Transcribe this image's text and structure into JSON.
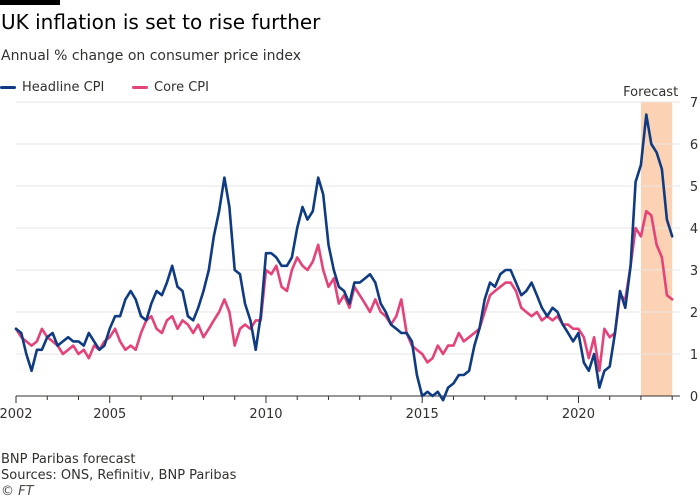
{
  "header": {
    "title": "UK inflation is set to rise further",
    "subtitle": "Annual % change on consumer price index"
  },
  "legend": {
    "headline_label": "Headline CPI",
    "core_label": "Core CPI"
  },
  "footer": {
    "note": "BNP Paribas forecast",
    "sources": "Sources: ONS, Refinitiv, BNP Paribas",
    "copyright": "© FT"
  },
  "colors": {
    "headline": "#0f3b82",
    "core": "#e5427a",
    "forecast_band": "#fbd2b3",
    "grid": "#e8e6e3",
    "axis": "#33302e"
  },
  "chart_data": {
    "type": "line",
    "title": "UK inflation is set to rise further",
    "subtitle": "Annual % change on consumer price index",
    "xlabel": "",
    "ylabel": "",
    "xlim": [
      2002.0,
      2023.25
    ],
    "ylim": [
      0,
      7
    ],
    "x_ticks": [
      2002,
      2005,
      2010,
      2015,
      2020
    ],
    "y_ticks": [
      0,
      1,
      2,
      3,
      4,
      5,
      6,
      7
    ],
    "grid": true,
    "legend_position": "top-left",
    "annotation": {
      "label": "Forecast",
      "x_start": 2022.0,
      "x_end": 2023.0
    },
    "series": [
      {
        "name": "Headline CPI",
        "color": "#0f3b82",
        "points": [
          [
            2002.0,
            1.6
          ],
          [
            2002.17,
            1.5
          ],
          [
            2002.33,
            1.0
          ],
          [
            2002.5,
            0.6
          ],
          [
            2002.67,
            1.1
          ],
          [
            2002.83,
            1.1
          ],
          [
            2003.0,
            1.4
          ],
          [
            2003.17,
            1.5
          ],
          [
            2003.33,
            1.2
          ],
          [
            2003.5,
            1.3
          ],
          [
            2003.67,
            1.4
          ],
          [
            2003.83,
            1.3
          ],
          [
            2004.0,
            1.3
          ],
          [
            2004.17,
            1.2
          ],
          [
            2004.33,
            1.5
          ],
          [
            2004.5,
            1.3
          ],
          [
            2004.67,
            1.1
          ],
          [
            2004.83,
            1.2
          ],
          [
            2005.0,
            1.6
          ],
          [
            2005.17,
            1.9
          ],
          [
            2005.33,
            1.9
          ],
          [
            2005.5,
            2.3
          ],
          [
            2005.67,
            2.5
          ],
          [
            2005.83,
            2.3
          ],
          [
            2006.0,
            1.9
          ],
          [
            2006.17,
            1.8
          ],
          [
            2006.33,
            2.2
          ],
          [
            2006.5,
            2.5
          ],
          [
            2006.67,
            2.4
          ],
          [
            2006.83,
            2.7
          ],
          [
            2007.0,
            3.1
          ],
          [
            2007.17,
            2.6
          ],
          [
            2007.33,
            2.5
          ],
          [
            2007.5,
            1.9
          ],
          [
            2007.67,
            1.8
          ],
          [
            2007.83,
            2.1
          ],
          [
            2008.0,
            2.5
          ],
          [
            2008.17,
            3.0
          ],
          [
            2008.33,
            3.8
          ],
          [
            2008.5,
            4.4
          ],
          [
            2008.67,
            5.2
          ],
          [
            2008.83,
            4.5
          ],
          [
            2009.0,
            3.0
          ],
          [
            2009.17,
            2.9
          ],
          [
            2009.33,
            2.2
          ],
          [
            2009.5,
            1.8
          ],
          [
            2009.67,
            1.1
          ],
          [
            2009.83,
            1.9
          ],
          [
            2010.0,
            3.4
          ],
          [
            2010.17,
            3.4
          ],
          [
            2010.33,
            3.3
          ],
          [
            2010.5,
            3.1
          ],
          [
            2010.67,
            3.1
          ],
          [
            2010.83,
            3.3
          ],
          [
            2011.0,
            4.0
          ],
          [
            2011.17,
            4.5
          ],
          [
            2011.33,
            4.2
          ],
          [
            2011.5,
            4.4
          ],
          [
            2011.67,
            5.2
          ],
          [
            2011.83,
            4.8
          ],
          [
            2012.0,
            3.6
          ],
          [
            2012.17,
            3.0
          ],
          [
            2012.33,
            2.6
          ],
          [
            2012.5,
            2.5
          ],
          [
            2012.67,
            2.2
          ],
          [
            2012.83,
            2.7
          ],
          [
            2013.0,
            2.7
          ],
          [
            2013.17,
            2.8
          ],
          [
            2013.33,
            2.9
          ],
          [
            2013.5,
            2.7
          ],
          [
            2013.67,
            2.2
          ],
          [
            2013.83,
            2.0
          ],
          [
            2014.0,
            1.7
          ],
          [
            2014.17,
            1.6
          ],
          [
            2014.33,
            1.5
          ],
          [
            2014.5,
            1.5
          ],
          [
            2014.67,
            1.3
          ],
          [
            2014.83,
            0.5
          ],
          [
            2015.0,
            0.0
          ],
          [
            2015.17,
            0.1
          ],
          [
            2015.33,
            0.0
          ],
          [
            2015.5,
            0.1
          ],
          [
            2015.67,
            -0.1
          ],
          [
            2015.83,
            0.2
          ],
          [
            2016.0,
            0.3
          ],
          [
            2016.17,
            0.5
          ],
          [
            2016.33,
            0.5
          ],
          [
            2016.5,
            0.6
          ],
          [
            2016.67,
            1.2
          ],
          [
            2016.83,
            1.6
          ],
          [
            2017.0,
            2.3
          ],
          [
            2017.17,
            2.7
          ],
          [
            2017.33,
            2.6
          ],
          [
            2017.5,
            2.9
          ],
          [
            2017.67,
            3.0
          ],
          [
            2017.83,
            3.0
          ],
          [
            2018.0,
            2.7
          ],
          [
            2018.17,
            2.4
          ],
          [
            2018.33,
            2.5
          ],
          [
            2018.5,
            2.7
          ],
          [
            2018.67,
            2.4
          ],
          [
            2018.83,
            2.1
          ],
          [
            2019.0,
            1.9
          ],
          [
            2019.17,
            2.1
          ],
          [
            2019.33,
            2.0
          ],
          [
            2019.5,
            1.7
          ],
          [
            2019.67,
            1.5
          ],
          [
            2019.83,
            1.3
          ],
          [
            2020.0,
            1.5
          ],
          [
            2020.17,
            0.8
          ],
          [
            2020.33,
            0.6
          ],
          [
            2020.5,
            1.0
          ],
          [
            2020.67,
            0.2
          ],
          [
            2020.83,
            0.6
          ],
          [
            2021.0,
            0.7
          ],
          [
            2021.17,
            1.5
          ],
          [
            2021.33,
            2.5
          ],
          [
            2021.5,
            2.1
          ],
          [
            2021.67,
            3.1
          ],
          [
            2021.83,
            5.1
          ],
          [
            2022.0,
            5.5
          ],
          [
            2022.17,
            6.7
          ],
          [
            2022.33,
            6.0
          ],
          [
            2022.5,
            5.8
          ],
          [
            2022.67,
            5.4
          ],
          [
            2022.83,
            4.2
          ],
          [
            2023.0,
            3.8
          ]
        ]
      },
      {
        "name": "Core CPI",
        "color": "#e5427a",
        "points": [
          [
            2002.0,
            1.6
          ],
          [
            2002.17,
            1.4
          ],
          [
            2002.33,
            1.3
          ],
          [
            2002.5,
            1.2
          ],
          [
            2002.67,
            1.3
          ],
          [
            2002.83,
            1.6
          ],
          [
            2003.0,
            1.4
          ],
          [
            2003.17,
            1.3
          ],
          [
            2003.33,
            1.2
          ],
          [
            2003.5,
            1.0
          ],
          [
            2003.67,
            1.1
          ],
          [
            2003.83,
            1.2
          ],
          [
            2004.0,
            1.0
          ],
          [
            2004.17,
            1.1
          ],
          [
            2004.33,
            0.9
          ],
          [
            2004.5,
            1.2
          ],
          [
            2004.67,
            1.1
          ],
          [
            2004.83,
            1.3
          ],
          [
            2005.0,
            1.4
          ],
          [
            2005.17,
            1.6
          ],
          [
            2005.33,
            1.3
          ],
          [
            2005.5,
            1.1
          ],
          [
            2005.67,
            1.2
          ],
          [
            2005.83,
            1.1
          ],
          [
            2006.0,
            1.5
          ],
          [
            2006.17,
            1.8
          ],
          [
            2006.33,
            1.9
          ],
          [
            2006.5,
            1.6
          ],
          [
            2006.67,
            1.5
          ],
          [
            2006.83,
            1.8
          ],
          [
            2007.0,
            1.9
          ],
          [
            2007.17,
            1.6
          ],
          [
            2007.33,
            1.8
          ],
          [
            2007.5,
            1.7
          ],
          [
            2007.67,
            1.5
          ],
          [
            2007.83,
            1.7
          ],
          [
            2008.0,
            1.4
          ],
          [
            2008.17,
            1.6
          ],
          [
            2008.33,
            1.8
          ],
          [
            2008.5,
            2.0
          ],
          [
            2008.67,
            2.3
          ],
          [
            2008.83,
            2.0
          ],
          [
            2009.0,
            1.2
          ],
          [
            2009.17,
            1.6
          ],
          [
            2009.33,
            1.7
          ],
          [
            2009.5,
            1.6
          ],
          [
            2009.67,
            1.8
          ],
          [
            2009.83,
            1.8
          ],
          [
            2010.0,
            3.0
          ],
          [
            2010.17,
            2.9
          ],
          [
            2010.33,
            3.1
          ],
          [
            2010.5,
            2.6
          ],
          [
            2010.67,
            2.5
          ],
          [
            2010.83,
            3.0
          ],
          [
            2011.0,
            3.3
          ],
          [
            2011.17,
            3.1
          ],
          [
            2011.33,
            3.0
          ],
          [
            2011.5,
            3.2
          ],
          [
            2011.67,
            3.6
          ],
          [
            2011.83,
            3.0
          ],
          [
            2012.0,
            2.6
          ],
          [
            2012.17,
            2.8
          ],
          [
            2012.33,
            2.2
          ],
          [
            2012.5,
            2.4
          ],
          [
            2012.67,
            2.1
          ],
          [
            2012.83,
            2.6
          ],
          [
            2013.0,
            2.4
          ],
          [
            2013.17,
            2.2
          ],
          [
            2013.33,
            2.0
          ],
          [
            2013.5,
            2.3
          ],
          [
            2013.67,
            2.0
          ],
          [
            2013.83,
            1.9
          ],
          [
            2014.0,
            1.7
          ],
          [
            2014.17,
            1.9
          ],
          [
            2014.33,
            2.3
          ],
          [
            2014.5,
            1.5
          ],
          [
            2014.67,
            1.2
          ],
          [
            2014.83,
            1.1
          ],
          [
            2015.0,
            1.0
          ],
          [
            2015.17,
            0.8
          ],
          [
            2015.33,
            0.9
          ],
          [
            2015.5,
            1.2
          ],
          [
            2015.67,
            1.0
          ],
          [
            2015.83,
            1.2
          ],
          [
            2016.0,
            1.2
          ],
          [
            2016.17,
            1.5
          ],
          [
            2016.33,
            1.3
          ],
          [
            2016.5,
            1.4
          ],
          [
            2016.67,
            1.5
          ],
          [
            2016.83,
            1.6
          ],
          [
            2017.0,
            2.0
          ],
          [
            2017.17,
            2.4
          ],
          [
            2017.33,
            2.5
          ],
          [
            2017.5,
            2.6
          ],
          [
            2017.67,
            2.7
          ],
          [
            2017.83,
            2.7
          ],
          [
            2018.0,
            2.5
          ],
          [
            2018.17,
            2.1
          ],
          [
            2018.33,
            2.0
          ],
          [
            2018.5,
            1.9
          ],
          [
            2018.67,
            2.0
          ],
          [
            2018.83,
            1.8
          ],
          [
            2019.0,
            1.9
          ],
          [
            2019.17,
            1.8
          ],
          [
            2019.33,
            1.9
          ],
          [
            2019.5,
            1.7
          ],
          [
            2019.67,
            1.7
          ],
          [
            2019.83,
            1.6
          ],
          [
            2020.0,
            1.6
          ],
          [
            2020.17,
            1.4
          ],
          [
            2020.33,
            0.9
          ],
          [
            2020.5,
            1.4
          ],
          [
            2020.67,
            0.6
          ],
          [
            2020.83,
            1.6
          ],
          [
            2021.0,
            1.4
          ],
          [
            2021.17,
            1.5
          ],
          [
            2021.33,
            2.4
          ],
          [
            2021.5,
            2.3
          ],
          [
            2021.67,
            3.1
          ],
          [
            2021.83,
            4.0
          ],
          [
            2022.0,
            3.8
          ],
          [
            2022.17,
            4.4
          ],
          [
            2022.33,
            4.3
          ],
          [
            2022.5,
            3.6
          ],
          [
            2022.67,
            3.3
          ],
          [
            2022.83,
            2.4
          ],
          [
            2023.0,
            2.3
          ]
        ]
      }
    ]
  }
}
